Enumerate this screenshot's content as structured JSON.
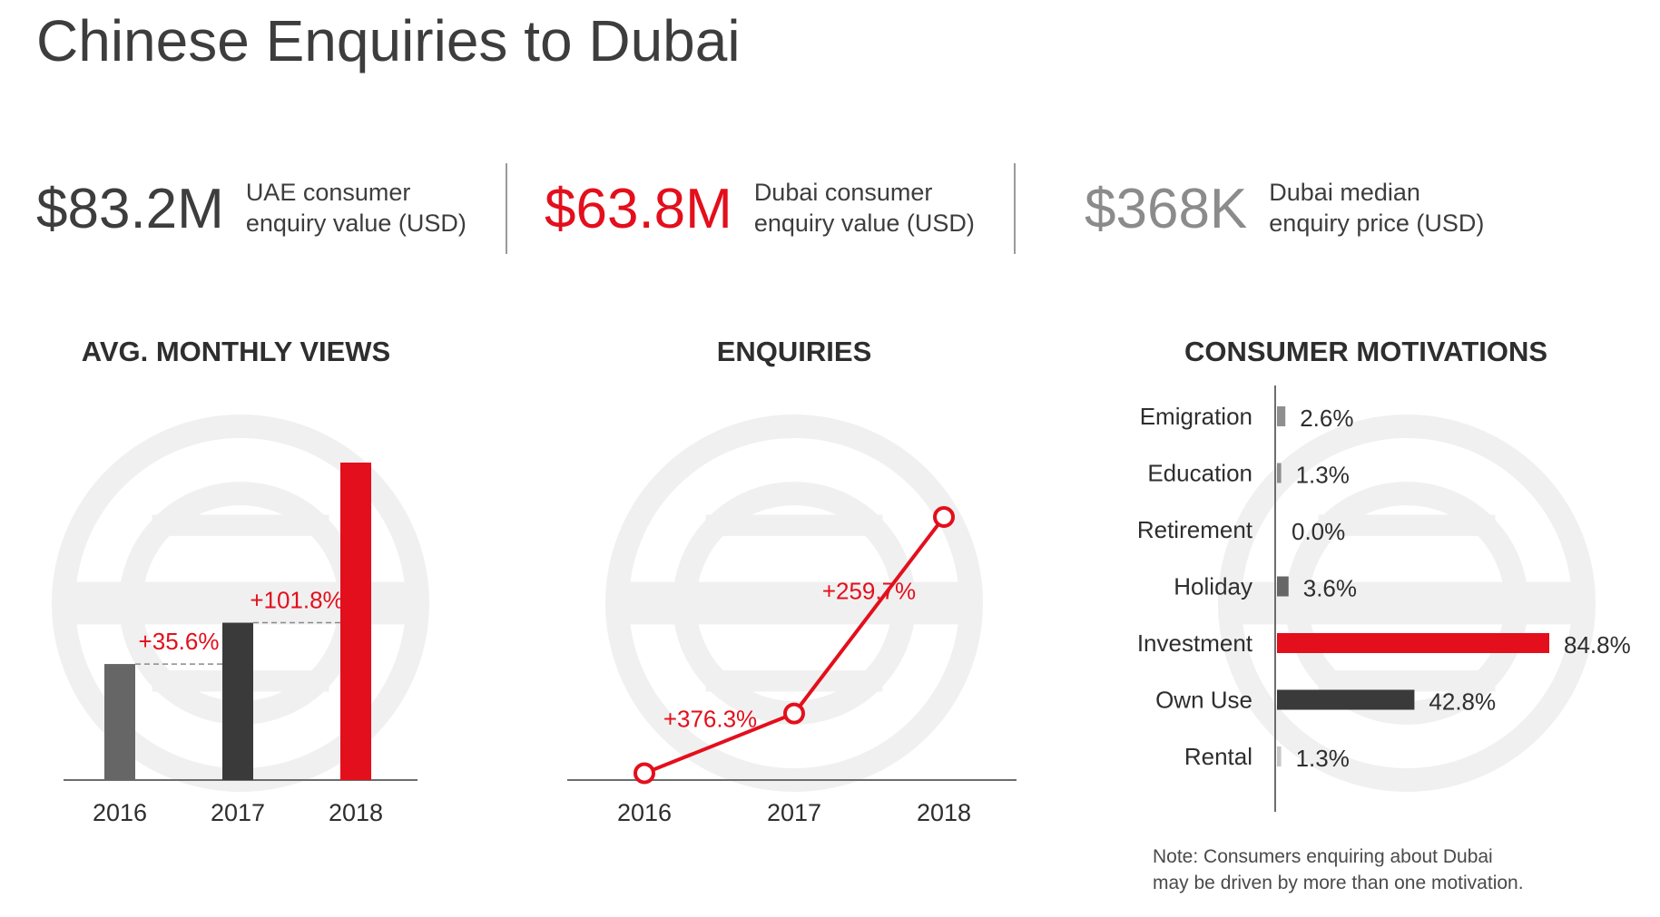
{
  "title": "Chinese Enquiries to Dubai",
  "stats": [
    {
      "value": "$83.2M",
      "label_line1": "UAE consumer",
      "label_line2": "enquiry value (USD)",
      "color": "#3d3d3d"
    },
    {
      "value": "$63.8M",
      "label_line1": "Dubai consumer",
      "label_line2": "enquiry value (USD)",
      "color": "#e30f1c"
    },
    {
      "value": "$368K",
      "label_line1": "Dubai median",
      "label_line2": "enquiry price (USD)",
      "color": "#8b8b8b"
    }
  ],
  "colors": {
    "accent": "#e30f1c",
    "dark": "#3a3a3a",
    "mid": "#666666",
    "light": "#8f8f8f",
    "watermark": "#f0f0f0"
  },
  "chart_data": [
    {
      "type": "bar",
      "title": "AVG. MONTHLY VIEWS",
      "categories": [
        "2016",
        "2017",
        "2018"
      ],
      "values": [
        1,
        1.356,
        2.736
      ],
      "value_unit": "relative to 2016",
      "bar_colors": [
        "#666666",
        "#3a3a3a",
        "#e30f1c"
      ],
      "annotations": [
        "+35.6%",
        "+101.8%"
      ],
      "ylim": [
        0,
        2.736
      ]
    },
    {
      "type": "line",
      "title": "ENQUIRIES",
      "x": [
        "2016",
        "2017",
        "2018"
      ],
      "values": [
        1,
        4.763,
        17.13
      ],
      "value_unit": "relative to 2016",
      "annotations": [
        "+376.3%",
        "+259.7%"
      ],
      "color": "#e30f1c",
      "ylim": [
        0,
        17.13
      ]
    },
    {
      "type": "bar",
      "orientation": "horizontal",
      "title": "CONSUMER MOTIVATIONS",
      "categories": [
        "Emigration",
        "Education",
        "Retirement",
        "Holiday",
        "Investment",
        "Own Use",
        "Rental"
      ],
      "values": [
        2.6,
        1.3,
        0.0,
        3.6,
        84.8,
        42.8,
        1.3
      ],
      "labels": [
        "2.6%",
        "1.3%",
        "0.0%",
        "3.6%",
        "84.8%",
        "42.8%",
        "1.3%"
      ],
      "bar_colors": [
        "#8f8f8f",
        "#8f8f8f",
        "#8f8f8f",
        "#666666",
        "#e30f1c",
        "#3a3a3a",
        "#c8c8c8"
      ],
      "xlim": [
        0,
        84.8
      ]
    }
  ],
  "note": {
    "line1": "Note: Consumers enquiring about Dubai",
    "line2": "may be driven by more than one motivation."
  }
}
